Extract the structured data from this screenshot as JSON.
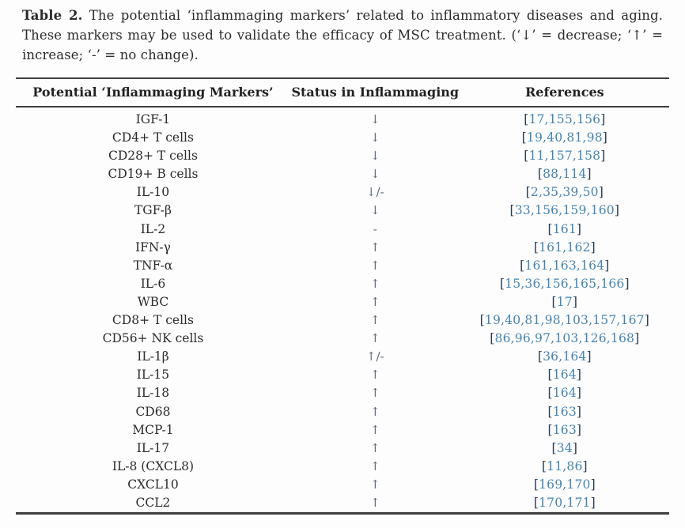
{
  "caption": {
    "label": "Table 2.",
    "text": "The potential ‘inflammaging markers’ related to inflammatory diseases and aging. These markers may be used to validate the efficacy of MSC treatment. (‘↓’ = decrease; ‘↑’ = increase; ‘-’ = no change)."
  },
  "table": {
    "columns": [
      "Potential ‘Inflammaging Markers’",
      "Status in Inflammaging",
      "References"
    ],
    "ref_bracket_open": "[",
    "ref_bracket_close": "]",
    "rows": [
      {
        "marker": "IGF-1",
        "status": "↓",
        "refs": "17,155,156"
      },
      {
        "marker": "CD4+ T cells",
        "status": "↓",
        "refs": "19,40,81,98"
      },
      {
        "marker": "CD28+ T cells",
        "status": "↓",
        "refs": "11,157,158"
      },
      {
        "marker": "CD19+ B cells",
        "status": "↓",
        "refs": "88,114"
      },
      {
        "marker": "IL-10",
        "status": "↓/-",
        "refs": "2,35,39,50"
      },
      {
        "marker": "TGF-β",
        "status": "↓",
        "refs": "33,156,159,160"
      },
      {
        "marker": "IL-2",
        "status": "-",
        "refs": "161"
      },
      {
        "marker": "IFN-γ",
        "status": "↑",
        "refs": "161,162"
      },
      {
        "marker": "TNF-α",
        "status": "↑",
        "refs": "161,163,164"
      },
      {
        "marker": "IL-6",
        "status": "↑",
        "refs": "15,36,156,165,166"
      },
      {
        "marker": "WBC",
        "status": "↑",
        "refs": "17"
      },
      {
        "marker": "CD8+ T cells",
        "status": "↑",
        "refs": "19,40,81,98,103,157,167"
      },
      {
        "marker": "CD56+ NK cells",
        "status": "↑",
        "refs": "86,96,97,103,126,168"
      },
      {
        "marker": "IL-1β",
        "status": "↑/-",
        "refs": "36,164"
      },
      {
        "marker": "IL-15",
        "status": "↑",
        "refs": "164"
      },
      {
        "marker": "IL-18",
        "status": "↑",
        "refs": "164"
      },
      {
        "marker": "CD68",
        "status": "↑",
        "refs": "163"
      },
      {
        "marker": "MCP-1",
        "status": "↑",
        "refs": "163"
      },
      {
        "marker": "IL-17",
        "status": "↑",
        "refs": "34"
      },
      {
        "marker": "IL-8 (CXCL8)",
        "status": "↑",
        "refs": "11,86"
      },
      {
        "marker": "CXCL10",
        "status": "↑",
        "refs": "169,170"
      },
      {
        "marker": "CCL2",
        "status": "↑",
        "refs": "170,171"
      }
    ]
  },
  "colors": {
    "reference_numbers": "#4484b2",
    "reference_brackets": "#2a3a52",
    "status_symbol": "#5d6873",
    "body_text": "#2b2b2b",
    "rule": "#3e3e3e",
    "background": "#fdfdfd"
  }
}
